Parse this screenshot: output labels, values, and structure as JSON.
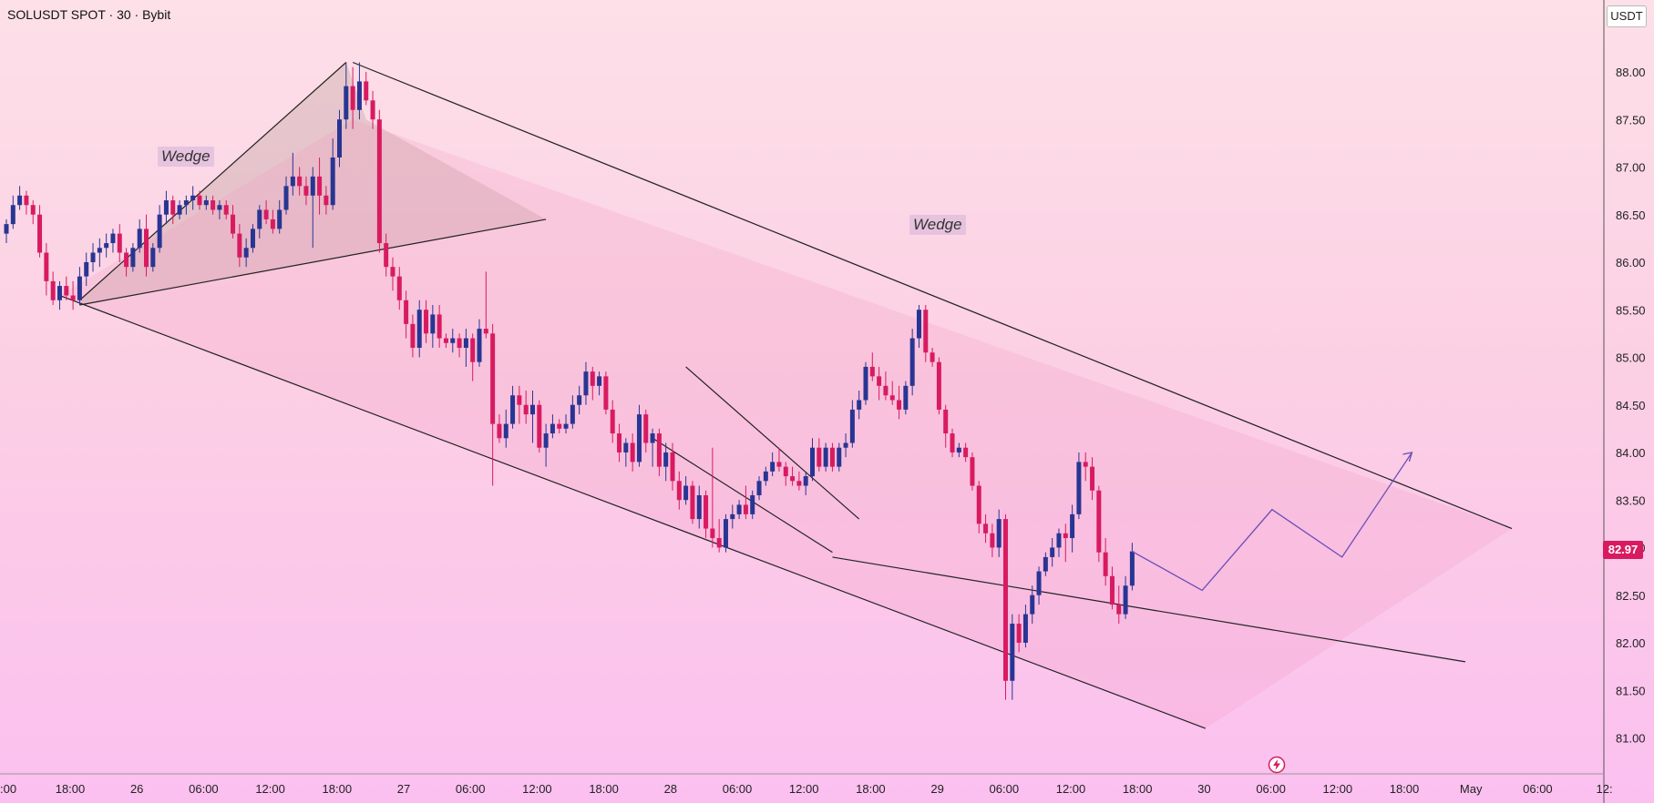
{
  "header": {
    "title": "SOLUSDT SPOT · 30 · Bybit",
    "currency": "USDT"
  },
  "annotations": {
    "wedge_small": "Wedge",
    "wedge_large": "Wedge"
  },
  "price_badge": "82.97",
  "icons": {
    "brand": "lightning-icon"
  },
  "colors": {
    "up": "#283593",
    "down": "#d81b60",
    "lines": "#222222",
    "projection": "#6a4fb5"
  },
  "chart_data": {
    "type": "candlestick",
    "title": "SOLUSDT SPOT · 30 · Bybit",
    "ylim": [
      80.6,
      88.7
    ],
    "y_ticks": [
      "88.00",
      "87.50",
      "87.00",
      "86.50",
      "86.00",
      "85.50",
      "85.00",
      "84.50",
      "84.00",
      "83.50",
      "83.00",
      "82.50",
      "82.00",
      "81.50",
      "81.00"
    ],
    "x_ticks": [
      ":00",
      "18:00",
      "26",
      "06:00",
      "12:00",
      "18:00",
      "27",
      "06:00",
      "12:00",
      "18:00",
      "28",
      "06:00",
      "12:00",
      "18:00",
      "29",
      "06:00",
      "12:00",
      "18:00",
      "30",
      "06:00",
      "12:00",
      "18:00",
      "May",
      "06:00",
      "12:"
    ],
    "last_price": 82.97,
    "candles": [
      [
        86.31,
        86.46,
        86.21,
        86.41
      ],
      [
        86.41,
        86.71,
        86.36,
        86.61
      ],
      [
        86.61,
        86.81,
        86.56,
        86.71
      ],
      [
        86.71,
        86.76,
        86.51,
        86.61
      ],
      [
        86.61,
        86.66,
        86.41,
        86.51
      ],
      [
        86.51,
        86.61,
        86.06,
        86.11
      ],
      [
        86.11,
        86.21,
        85.66,
        85.81
      ],
      [
        85.81,
        85.91,
        85.56,
        85.61
      ],
      [
        85.61,
        85.81,
        85.51,
        85.76
      ],
      [
        85.76,
        85.86,
        85.61,
        85.66
      ],
      [
        85.66,
        85.81,
        85.51,
        85.61
      ],
      [
        85.61,
        85.96,
        85.56,
        85.86
      ],
      [
        85.86,
        86.11,
        85.76,
        86.01
      ],
      [
        86.01,
        86.21,
        85.91,
        86.11
      ],
      [
        86.11,
        86.26,
        85.96,
        86.16
      ],
      [
        86.16,
        86.31,
        86.06,
        86.21
      ],
      [
        86.21,
        86.36,
        86.11,
        86.31
      ],
      [
        86.31,
        86.41,
        86.01,
        86.11
      ],
      [
        86.11,
        86.16,
        85.86,
        85.96
      ],
      [
        85.96,
        86.21,
        85.91,
        86.16
      ],
      [
        86.16,
        86.46,
        86.11,
        86.36
      ],
      [
        86.36,
        86.51,
        85.86,
        85.96
      ],
      [
        85.96,
        86.21,
        85.91,
        86.16
      ],
      [
        86.16,
        86.61,
        86.11,
        86.51
      ],
      [
        86.51,
        86.76,
        86.41,
        86.66
      ],
      [
        86.66,
        86.71,
        86.41,
        86.51
      ],
      [
        86.51,
        86.66,
        86.46,
        86.61
      ],
      [
        86.61,
        86.71,
        86.51,
        86.66
      ],
      [
        86.66,
        86.81,
        86.56,
        86.71
      ],
      [
        86.71,
        86.76,
        86.56,
        86.61
      ],
      [
        86.61,
        86.71,
        86.56,
        86.66
      ],
      [
        86.66,
        86.71,
        86.51,
        86.56
      ],
      [
        86.56,
        86.66,
        86.46,
        86.61
      ],
      [
        86.61,
        86.66,
        86.46,
        86.51
      ],
      [
        86.51,
        86.61,
        86.26,
        86.31
      ],
      [
        86.31,
        86.41,
        85.96,
        86.06
      ],
      [
        86.06,
        86.26,
        85.96,
        86.16
      ],
      [
        86.16,
        86.41,
        86.11,
        86.36
      ],
      [
        86.36,
        86.61,
        86.26,
        86.56
      ],
      [
        86.56,
        86.66,
        86.41,
        86.46
      ],
      [
        86.46,
        86.56,
        86.31,
        86.36
      ],
      [
        86.36,
        86.66,
        86.31,
        86.56
      ],
      [
        86.56,
        86.91,
        86.51,
        86.81
      ],
      [
        86.81,
        87.16,
        86.71,
        86.91
      ],
      [
        86.91,
        87.01,
        86.71,
        86.81
      ],
      [
        86.81,
        86.91,
        86.61,
        86.71
      ],
      [
        86.71,
        87.01,
        86.16,
        86.91
      ],
      [
        86.91,
        87.11,
        86.51,
        86.71
      ],
      [
        86.71,
        86.81,
        86.51,
        86.61
      ],
      [
        86.61,
        87.31,
        86.56,
        87.11
      ],
      [
        87.11,
        87.61,
        87.01,
        87.51
      ],
      [
        87.51,
        88.11,
        87.41,
        87.86
      ],
      [
        87.86,
        88.06,
        87.41,
        87.61
      ],
      [
        87.61,
        88.11,
        87.51,
        87.91
      ],
      [
        87.91,
        88.01,
        87.66,
        87.71
      ],
      [
        87.71,
        87.81,
        87.41,
        87.51
      ],
      [
        87.51,
        87.61,
        86.11,
        86.21
      ],
      [
        86.21,
        86.31,
        85.86,
        85.96
      ],
      [
        85.96,
        86.06,
        85.71,
        85.86
      ],
      [
        85.86,
        85.96,
        85.51,
        85.61
      ],
      [
        85.61,
        85.71,
        85.21,
        85.36
      ],
      [
        85.36,
        85.46,
        85.01,
        85.11
      ],
      [
        85.11,
        85.61,
        85.01,
        85.51
      ],
      [
        85.51,
        85.61,
        85.16,
        85.26
      ],
      [
        85.26,
        85.56,
        85.11,
        85.46
      ],
      [
        85.46,
        85.56,
        85.11,
        85.21
      ],
      [
        85.21,
        85.26,
        85.11,
        85.16
      ],
      [
        85.16,
        85.31,
        85.06,
        85.21
      ],
      [
        85.21,
        85.26,
        85.01,
        85.11
      ],
      [
        85.11,
        85.31,
        84.91,
        85.21
      ],
      [
        85.21,
        85.26,
        84.76,
        84.96
      ],
      [
        84.96,
        85.41,
        84.91,
        85.31
      ],
      [
        85.31,
        85.91,
        85.21,
        85.26
      ],
      [
        85.26,
        85.36,
        83.66,
        84.31
      ],
      [
        84.31,
        84.41,
        84.11,
        84.16
      ],
      [
        84.16,
        84.46,
        84.06,
        84.31
      ],
      [
        84.31,
        84.71,
        84.26,
        84.61
      ],
      [
        84.61,
        84.71,
        84.31,
        84.51
      ],
      [
        84.51,
        84.66,
        84.31,
        84.41
      ],
      [
        84.41,
        84.66,
        84.11,
        84.51
      ],
      [
        84.51,
        84.56,
        84.01,
        84.06
      ],
      [
        84.06,
        84.31,
        83.86,
        84.21
      ],
      [
        84.21,
        84.41,
        84.16,
        84.31
      ],
      [
        84.31,
        84.36,
        84.21,
        84.26
      ],
      [
        84.26,
        84.41,
        84.21,
        84.31
      ],
      [
        84.31,
        84.61,
        84.26,
        84.51
      ],
      [
        84.51,
        84.71,
        84.41,
        84.61
      ],
      [
        84.61,
        84.96,
        84.51,
        84.86
      ],
      [
        84.86,
        84.91,
        84.56,
        84.71
      ],
      [
        84.71,
        84.86,
        84.61,
        84.81
      ],
      [
        84.81,
        84.86,
        84.41,
        84.46
      ],
      [
        84.46,
        84.56,
        84.11,
        84.21
      ],
      [
        84.21,
        84.31,
        83.91,
        84.01
      ],
      [
        84.01,
        84.16,
        83.86,
        84.11
      ],
      [
        84.11,
        84.21,
        83.81,
        83.91
      ],
      [
        83.91,
        84.51,
        83.86,
        84.41
      ],
      [
        84.41,
        84.46,
        84.01,
        84.11
      ],
      [
        84.11,
        84.26,
        83.86,
        84.21
      ],
      [
        84.21,
        84.26,
        83.76,
        83.86
      ],
      [
        83.86,
        84.11,
        83.71,
        84.01
      ],
      [
        84.01,
        84.11,
        83.61,
        83.71
      ],
      [
        83.71,
        83.81,
        83.41,
        83.51
      ],
      [
        83.51,
        83.76,
        83.46,
        83.66
      ],
      [
        83.66,
        83.71,
        83.26,
        83.31
      ],
      [
        83.31,
        83.66,
        83.21,
        83.56
      ],
      [
        83.56,
        83.61,
        83.11,
        83.21
      ],
      [
        83.21,
        84.06,
        83.01,
        83.11
      ],
      [
        83.11,
        83.31,
        82.96,
        83.01
      ],
      [
        83.01,
        83.36,
        82.96,
        83.31
      ],
      [
        83.31,
        83.46,
        83.21,
        83.36
      ],
      [
        83.36,
        83.51,
        83.31,
        83.46
      ],
      [
        83.46,
        83.66,
        83.31,
        83.36
      ],
      [
        83.36,
        83.61,
        83.31,
        83.56
      ],
      [
        83.56,
        83.76,
        83.51,
        83.71
      ],
      [
        83.71,
        83.86,
        83.66,
        83.81
      ],
      [
        83.81,
        84.01,
        83.76,
        83.91
      ],
      [
        83.91,
        84.06,
        83.81,
        83.86
      ],
      [
        83.86,
        83.91,
        83.66,
        83.76
      ],
      [
        83.76,
        83.86,
        83.66,
        83.71
      ],
      [
        83.71,
        83.81,
        83.61,
        83.66
      ],
      [
        83.66,
        83.81,
        83.56,
        83.76
      ],
      [
        83.76,
        84.16,
        83.71,
        84.06
      ],
      [
        84.06,
        84.16,
        83.81,
        83.86
      ],
      [
        83.86,
        84.11,
        83.81,
        84.06
      ],
      [
        84.06,
        84.11,
        83.81,
        83.86
      ],
      [
        83.86,
        84.11,
        83.81,
        84.06
      ],
      [
        84.06,
        84.21,
        83.96,
        84.11
      ],
      [
        84.11,
        84.56,
        84.06,
        84.46
      ],
      [
        84.46,
        84.66,
        84.36,
        84.56
      ],
      [
        84.56,
        84.96,
        84.51,
        84.91
      ],
      [
        84.91,
        85.06,
        84.76,
        84.81
      ],
      [
        84.81,
        84.91,
        84.56,
        84.71
      ],
      [
        84.71,
        84.86,
        84.56,
        84.61
      ],
      [
        84.61,
        84.76,
        84.51,
        84.56
      ],
      [
        84.56,
        84.71,
        84.36,
        84.46
      ],
      [
        84.46,
        84.76,
        84.41,
        84.71
      ],
      [
        84.71,
        85.31,
        84.61,
        85.21
      ],
      [
        85.21,
        85.56,
        85.11,
        85.51
      ],
      [
        85.51,
        85.56,
        84.96,
        85.06
      ],
      [
        85.06,
        85.11,
        84.91,
        84.96
      ],
      [
        84.96,
        85.01,
        84.41,
        84.46
      ],
      [
        84.46,
        84.51,
        84.06,
        84.21
      ],
      [
        84.21,
        84.26,
        83.96,
        84.01
      ],
      [
        84.01,
        84.11,
        83.96,
        84.06
      ],
      [
        84.06,
        84.11,
        83.91,
        83.96
      ],
      [
        83.96,
        84.01,
        83.61,
        83.66
      ],
      [
        83.66,
        83.71,
        83.16,
        83.26
      ],
      [
        83.26,
        83.36,
        83.06,
        83.16
      ],
      [
        83.16,
        83.26,
        82.91,
        83.01
      ],
      [
        83.01,
        83.41,
        82.91,
        83.31
      ],
      [
        83.31,
        83.36,
        81.41,
        81.61
      ],
      [
        81.61,
        82.31,
        81.41,
        82.21
      ],
      [
        82.21,
        82.31,
        81.91,
        82.01
      ],
      [
        82.01,
        82.41,
        81.96,
        82.31
      ],
      [
        82.31,
        82.61,
        82.21,
        82.51
      ],
      [
        82.51,
        82.81,
        82.41,
        82.76
      ],
      [
        82.76,
        82.96,
        82.71,
        82.91
      ],
      [
        82.91,
        83.11,
        82.81,
        83.01
      ],
      [
        83.01,
        83.21,
        82.91,
        83.16
      ],
      [
        83.16,
        83.26,
        82.86,
        83.11
      ],
      [
        83.11,
        83.46,
        82.96,
        83.36
      ],
      [
        83.36,
        84.01,
        83.31,
        83.91
      ],
      [
        83.91,
        84.01,
        83.71,
        83.86
      ],
      [
        83.86,
        83.96,
        83.51,
        83.61
      ],
      [
        83.61,
        83.66,
        82.86,
        82.96
      ],
      [
        82.96,
        83.11,
        82.61,
        82.71
      ],
      [
        82.71,
        82.81,
        82.36,
        82.41
      ],
      [
        82.41,
        82.61,
        82.21,
        82.31
      ],
      [
        82.31,
        82.71,
        82.26,
        82.61
      ],
      [
        82.61,
        83.06,
        82.56,
        82.97
      ]
    ],
    "projection": [
      82.97,
      82.56,
      83.41,
      82.91,
      84.01
    ],
    "trendlines": [
      {
        "name": "small-wedge-upper",
        "from": [
          85.61,
          11
        ],
        "to": [
          88.11,
          51
        ]
      },
      {
        "name": "small-wedge-lower",
        "from": [
          85.56,
          11
        ],
        "to": [
          86.46,
          81
        ]
      },
      {
        "name": "big-wedge-upper",
        "from": [
          88.11,
          52
        ],
        "to": [
          83.21,
          226
        ]
      },
      {
        "name": "big-wedge-lower",
        "from": [
          85.66,
          8
        ],
        "to": [
          81.11,
          180
        ]
      },
      {
        "name": "inner-upper",
        "from": [
          84.91,
          102
        ],
        "to": [
          83.31,
          128
        ]
      },
      {
        "name": "inner-lower",
        "from": [
          84.16,
          97
        ],
        "to": [
          82.96,
          124
        ]
      },
      {
        "name": "support",
        "from": [
          82.91,
          124
        ],
        "to": [
          81.81,
          219
        ]
      }
    ]
  }
}
